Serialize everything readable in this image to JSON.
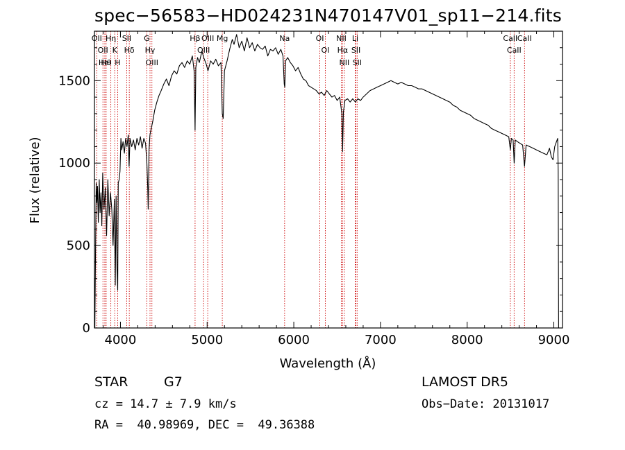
{
  "header": {
    "title": "spec−56583−HD024231N470147V01_sp11−214.fits"
  },
  "footer": {
    "object_class": "STAR",
    "subclass": "G7",
    "survey": "LAMOST DR5",
    "cz": "cz = 14.7 ± 7.9 km/s",
    "obs_date": "Obs−Date: 20131017",
    "coords": "RA =  40.98969, DEC =  49.36388"
  },
  "chart_data": {
    "type": "line",
    "title": "spec−56583−HD024231N470147V01_sp11−214.fits",
    "xlabel": "Wavelength (Å)",
    "ylabel": "Flux (relative)",
    "xlim": [
      3700,
      9100
    ],
    "ylim": [
      0,
      1800
    ],
    "xticks": [
      4000,
      5000,
      6000,
      7000,
      8000,
      9000
    ],
    "xtick_labels": [
      "4000",
      "5000",
      "6000",
      "7000",
      "8000",
      "9000"
    ],
    "yticks": [
      0,
      500,
      1000,
      1500
    ],
    "ytick_labels": [
      "0",
      "500",
      "1000",
      "1500"
    ],
    "grid": false,
    "legend": "none",
    "line_color": "#000000",
    "marker_line_color": "#cc0000",
    "series": [
      {
        "points": [
          [
            3700,
            300
          ],
          [
            3705,
            0
          ],
          [
            3712,
            420
          ],
          [
            3720,
            880
          ],
          [
            3728,
            760
          ],
          [
            3735,
            860
          ],
          [
            3745,
            640
          ],
          [
            3755,
            900
          ],
          [
            3765,
            700
          ],
          [
            3775,
            820
          ],
          [
            3785,
            620
          ],
          [
            3795,
            940
          ],
          [
            3810,
            720
          ],
          [
            3825,
            850
          ],
          [
            3840,
            560
          ],
          [
            3855,
            900
          ],
          [
            3870,
            680
          ],
          [
            3885,
            820
          ],
          [
            3900,
            720
          ],
          [
            3915,
            500
          ],
          [
            3930,
            780
          ],
          [
            3940,
            260
          ],
          [
            3950,
            800
          ],
          [
            3960,
            360
          ],
          [
            3968,
            230
          ],
          [
            3975,
            880
          ],
          [
            3985,
            900
          ],
          [
            3995,
            950
          ],
          [
            4005,
            1150
          ],
          [
            4015,
            1080
          ],
          [
            4030,
            1130
          ],
          [
            4045,
            1060
          ],
          [
            4060,
            1150
          ],
          [
            4075,
            1100
          ],
          [
            4090,
            1170
          ],
          [
            4100,
            980
          ],
          [
            4110,
            1150
          ],
          [
            4130,
            1100
          ],
          [
            4150,
            1140
          ],
          [
            4170,
            1080
          ],
          [
            4190,
            1150
          ],
          [
            4210,
            1110
          ],
          [
            4230,
            1160
          ],
          [
            4250,
            1090
          ],
          [
            4270,
            1150
          ],
          [
            4290,
            1120
          ],
          [
            4305,
            1000
          ],
          [
            4315,
            840
          ],
          [
            4320,
            720
          ],
          [
            4330,
            1080
          ],
          [
            4340,
            1170
          ],
          [
            4355,
            1210
          ],
          [
            4375,
            1260
          ],
          [
            4395,
            1320
          ],
          [
            4420,
            1370
          ],
          [
            4445,
            1410
          ],
          [
            4470,
            1440
          ],
          [
            4500,
            1480
          ],
          [
            4530,
            1510
          ],
          [
            4560,
            1470
          ],
          [
            4590,
            1530
          ],
          [
            4620,
            1560
          ],
          [
            4650,
            1540
          ],
          [
            4680,
            1590
          ],
          [
            4710,
            1610
          ],
          [
            4740,
            1580
          ],
          [
            4770,
            1620
          ],
          [
            4800,
            1600
          ],
          [
            4830,
            1650
          ],
          [
            4850,
            1560
          ],
          [
            4861,
            1200
          ],
          [
            4870,
            1580
          ],
          [
            4890,
            1640
          ],
          [
            4910,
            1610
          ],
          [
            4940,
            1680
          ],
          [
            4960,
            1640
          ],
          [
            4990,
            1600
          ],
          [
            5010,
            1560
          ],
          [
            5040,
            1620
          ],
          [
            5070,
            1600
          ],
          [
            5100,
            1630
          ],
          [
            5130,
            1590
          ],
          [
            5160,
            1610
          ],
          [
            5175,
            1300
          ],
          [
            5185,
            1270
          ],
          [
            5200,
            1560
          ],
          [
            5230,
            1620
          ],
          [
            5260,
            1690
          ],
          [
            5290,
            1750
          ],
          [
            5310,
            1720
          ],
          [
            5340,
            1780
          ],
          [
            5370,
            1700
          ],
          [
            5400,
            1740
          ],
          [
            5430,
            1680
          ],
          [
            5460,
            1760
          ],
          [
            5490,
            1700
          ],
          [
            5520,
            1730
          ],
          [
            5550,
            1680
          ],
          [
            5580,
            1720
          ],
          [
            5610,
            1700
          ],
          [
            5640,
            1690
          ],
          [
            5670,
            1710
          ],
          [
            5700,
            1650
          ],
          [
            5730,
            1690
          ],
          [
            5760,
            1680
          ],
          [
            5790,
            1700
          ],
          [
            5820,
            1660
          ],
          [
            5850,
            1690
          ],
          [
            5875,
            1650
          ],
          [
            5890,
            1480
          ],
          [
            5896,
            1460
          ],
          [
            5905,
            1620
          ],
          [
            5930,
            1640
          ],
          [
            5960,
            1610
          ],
          [
            5990,
            1590
          ],
          [
            6020,
            1560
          ],
          [
            6050,
            1580
          ],
          [
            6080,
            1540
          ],
          [
            6110,
            1510
          ],
          [
            6140,
            1500
          ],
          [
            6170,
            1470
          ],
          [
            6200,
            1460
          ],
          [
            6230,
            1450
          ],
          [
            6260,
            1440
          ],
          [
            6290,
            1420
          ],
          [
            6320,
            1430
          ],
          [
            6350,
            1410
          ],
          [
            6380,
            1440
          ],
          [
            6410,
            1420
          ],
          [
            6440,
            1400
          ],
          [
            6470,
            1410
          ],
          [
            6500,
            1380
          ],
          [
            6530,
            1400
          ],
          [
            6555,
            1300
          ],
          [
            6563,
            1070
          ],
          [
            6572,
            1310
          ],
          [
            6590,
            1380
          ],
          [
            6620,
            1390
          ],
          [
            6650,
            1370
          ],
          [
            6680,
            1390
          ],
          [
            6710,
            1370
          ],
          [
            6740,
            1390
          ],
          [
            6770,
            1380
          ],
          [
            6800,
            1400
          ],
          [
            6840,
            1420
          ],
          [
            6880,
            1440
          ],
          [
            6920,
            1450
          ],
          [
            6960,
            1460
          ],
          [
            7000,
            1470
          ],
          [
            7040,
            1480
          ],
          [
            7080,
            1490
          ],
          [
            7120,
            1500
          ],
          [
            7160,
            1490
          ],
          [
            7200,
            1480
          ],
          [
            7240,
            1490
          ],
          [
            7280,
            1480
          ],
          [
            7320,
            1470
          ],
          [
            7360,
            1470
          ],
          [
            7400,
            1460
          ],
          [
            7440,
            1450
          ],
          [
            7480,
            1450
          ],
          [
            7520,
            1440
          ],
          [
            7560,
            1430
          ],
          [
            7600,
            1420
          ],
          [
            7640,
            1410
          ],
          [
            7680,
            1400
          ],
          [
            7720,
            1390
          ],
          [
            7760,
            1380
          ],
          [
            7800,
            1370
          ],
          [
            7840,
            1350
          ],
          [
            7880,
            1340
          ],
          [
            7920,
            1320
          ],
          [
            7960,
            1310
          ],
          [
            8000,
            1300
          ],
          [
            8040,
            1290
          ],
          [
            8080,
            1270
          ],
          [
            8120,
            1260
          ],
          [
            8160,
            1250
          ],
          [
            8200,
            1240
          ],
          [
            8240,
            1230
          ],
          [
            8280,
            1210
          ],
          [
            8320,
            1200
          ],
          [
            8360,
            1190
          ],
          [
            8400,
            1180
          ],
          [
            8440,
            1170
          ],
          [
            8480,
            1160
          ],
          [
            8498,
            1080
          ],
          [
            8510,
            1150
          ],
          [
            8530,
            1140
          ],
          [
            8542,
            1000
          ],
          [
            8555,
            1140
          ],
          [
            8580,
            1130
          ],
          [
            8610,
            1120
          ],
          [
            8640,
            1110
          ],
          [
            8662,
            980
          ],
          [
            8680,
            1110
          ],
          [
            8720,
            1100
          ],
          [
            8760,
            1090
          ],
          [
            8800,
            1080
          ],
          [
            8840,
            1070
          ],
          [
            8880,
            1060
          ],
          [
            8920,
            1050
          ],
          [
            8950,
            1090
          ],
          [
            8970,
            1040
          ],
          [
            8990,
            1020
          ],
          [
            9010,
            1100
          ],
          [
            9030,
            1130
          ],
          [
            9045,
            1150
          ],
          [
            9050,
            950
          ],
          [
            9055,
            0
          ]
        ]
      }
    ],
    "line_markers": [
      {
        "wavelength": 3727,
        "label": "OII"
      },
      {
        "wavelength": 3798,
        "label": "OII"
      },
      {
        "wavelength": 3820,
        "label": "HeI"
      },
      {
        "wavelength": 3835,
        "label": "Hθ"
      },
      {
        "wavelength": 3889,
        "label": "Hη"
      },
      {
        "wavelength": 3934,
        "label": "K"
      },
      {
        "wavelength": 3968,
        "label": "H"
      },
      {
        "wavelength": 4072,
        "label": "SII"
      },
      {
        "wavelength": 4102,
        "label": "Hδ"
      },
      {
        "wavelength": 4304,
        "label": "G"
      },
      {
        "wavelength": 4341,
        "label": "Hγ"
      },
      {
        "wavelength": 4363,
        "label": "OIII"
      },
      {
        "wavelength": 4861,
        "label": "Hβ"
      },
      {
        "wavelength": 4959,
        "label": "OIII"
      },
      {
        "wavelength": 5007,
        "label": "OIII"
      },
      {
        "wavelength": 5175,
        "label": "Mg"
      },
      {
        "wavelength": 5894,
        "label": "Na"
      },
      {
        "wavelength": 6300,
        "label": "OI"
      },
      {
        "wavelength": 6364,
        "label": "OI"
      },
      {
        "wavelength": 6548,
        "label": "NII"
      },
      {
        "wavelength": 6563,
        "label": "Hα"
      },
      {
        "wavelength": 6583,
        "label": "NII"
      },
      {
        "wavelength": 6708,
        "label": "Li"
      },
      {
        "wavelength": 6717,
        "label": "SII"
      },
      {
        "wavelength": 6731,
        "label": "SII"
      },
      {
        "wavelength": 8498,
        "label": "CaII"
      },
      {
        "wavelength": 8542,
        "label": "CaII"
      },
      {
        "wavelength": 8662,
        "label": "CaII"
      }
    ]
  }
}
